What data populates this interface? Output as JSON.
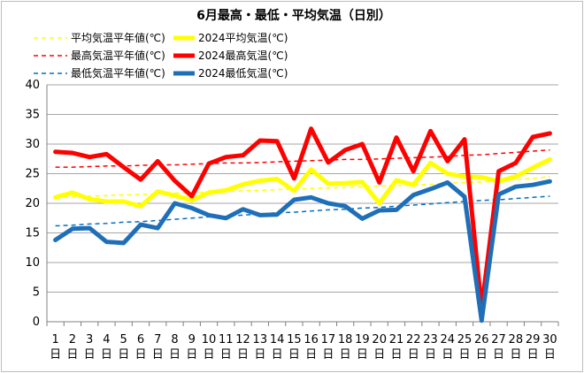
{
  "chart_data": {
    "type": "line",
    "title": "6月最高・最低・平均気温（日別）",
    "xlabel": "",
    "ylabel": "",
    "ylim": [
      0,
      40
    ],
    "yticks": [
      "0",
      "5",
      "10",
      "15",
      "20",
      "25",
      "30",
      "35",
      "40"
    ],
    "x": [
      "1",
      "2",
      "3",
      "4",
      "5",
      "6",
      "7",
      "8",
      "9",
      "10",
      "11",
      "12",
      "13",
      "14",
      "15",
      "16",
      "17",
      "18",
      "19",
      "20",
      "21",
      "22",
      "23",
      "24",
      "25",
      "26",
      "27",
      "28",
      "29",
      "30"
    ],
    "x_suffix": "日",
    "grid": true,
    "legend": "top-left",
    "series": [
      {
        "name": "平均気温平年値(℃)",
        "color": "#ffff00",
        "style": "dashed",
        "width": 1.5,
        "values": [
          21.0,
          21.1,
          21.2,
          21.3,
          21.4,
          21.5,
          21.6,
          21.7,
          21.8,
          21.9,
          22.0,
          22.1,
          22.2,
          22.3,
          22.4,
          22.5,
          22.6,
          22.7,
          22.8,
          22.9,
          23.0,
          23.1,
          23.2,
          23.4,
          23.5,
          23.6,
          23.8,
          24.0,
          24.2,
          24.5
        ]
      },
      {
        "name": "2024平均気温(℃)",
        "color": "#ffff00",
        "style": "solid",
        "width": 5,
        "values": [
          21.0,
          21.8,
          20.7,
          20.3,
          20.3,
          19.5,
          22.0,
          21.3,
          20.5,
          21.8,
          22.2,
          23.2,
          23.8,
          24.1,
          22.1,
          25.7,
          23.3,
          23.4,
          23.6,
          20.0,
          23.9,
          23.1,
          26.8,
          25.0,
          24.5,
          24.4,
          23.7,
          24.5,
          26.0,
          27.4
        ]
      },
      {
        "name": "最高気温平年値(℃)",
        "color": "#ff0000",
        "style": "dashed",
        "width": 1.5,
        "values": [
          26.1,
          26.1,
          26.2,
          26.3,
          26.3,
          26.4,
          26.5,
          26.5,
          26.6,
          26.7,
          26.8,
          26.8,
          26.9,
          27.0,
          27.1,
          27.2,
          27.3,
          27.4,
          27.4,
          27.5,
          27.6,
          27.7,
          27.8,
          27.9,
          28.1,
          28.2,
          28.4,
          28.6,
          28.8,
          29.0
        ]
      },
      {
        "name": "2024最高気温(℃)",
        "color": "#ff0000",
        "style": "solid",
        "width": 5,
        "values": [
          28.7,
          28.5,
          27.8,
          28.3,
          26.1,
          24.0,
          27.1,
          23.8,
          21.2,
          26.7,
          27.8,
          28.1,
          30.6,
          30.5,
          24.2,
          32.6,
          26.9,
          29.0,
          30.0,
          23.5,
          31.1,
          25.4,
          32.2,
          27.1,
          30.8,
          2.3,
          25.4,
          26.8,
          31.2,
          31.8
        ]
      },
      {
        "name": "最低気温平年値(℃)",
        "color": "#0070c0",
        "style": "dashed",
        "width": 1.5,
        "values": [
          16.2,
          16.3,
          16.5,
          16.6,
          16.8,
          16.9,
          17.1,
          17.3,
          17.5,
          17.7,
          17.8,
          18.0,
          18.2,
          18.4,
          18.5,
          18.7,
          18.9,
          19.0,
          19.2,
          19.3,
          19.5,
          19.7,
          19.9,
          20.1,
          20.3,
          20.5,
          20.6,
          20.8,
          21.0,
          21.2
        ]
      },
      {
        "name": "2024最低気温(℃)",
        "color": "#1f6fb8",
        "style": "solid",
        "width": 5,
        "values": [
          13.8,
          15.7,
          15.8,
          13.5,
          13.3,
          16.4,
          15.8,
          20.0,
          19.2,
          18.0,
          17.5,
          19.0,
          18.0,
          18.1,
          20.6,
          21.0,
          20.0,
          19.5,
          17.4,
          18.8,
          18.9,
          21.4,
          22.4,
          23.5,
          21.1,
          0.2,
          21.5,
          22.8,
          23.1,
          23.7
        ]
      }
    ]
  }
}
